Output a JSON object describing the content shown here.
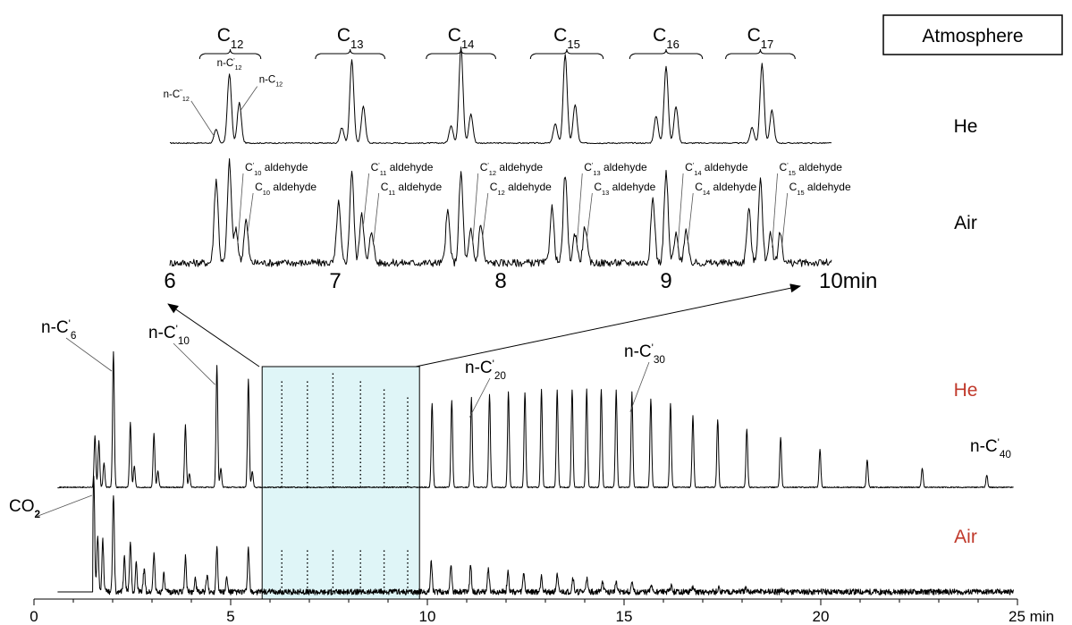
{
  "chart_data": [
    {
      "type": "line",
      "name": "expanded-view",
      "xlim": [
        6,
        10
      ],
      "ticks": [
        {
          "value": 6,
          "label": "6"
        },
        {
          "value": 7,
          "label": "7"
        },
        {
          "value": 8,
          "label": "8"
        },
        {
          "value": 9,
          "label": "9"
        },
        {
          "value": 10,
          "label": "10min"
        }
      ],
      "legend_title": "Atmosphere",
      "series": [
        {
          "name": "He",
          "color": "#000000",
          "peaks": [
            {
              "x": 6.28,
              "h": 0.14
            },
            {
              "x": 6.36,
              "h": 0.72
            },
            {
              "x": 6.42,
              "h": 0.42
            },
            {
              "x": 7.04,
              "h": 0.16
            },
            {
              "x": 7.1,
              "h": 0.86
            },
            {
              "x": 7.17,
              "h": 0.38
            },
            {
              "x": 7.7,
              "h": 0.18
            },
            {
              "x": 7.76,
              "h": 1.0
            },
            {
              "x": 7.82,
              "h": 0.3
            },
            {
              "x": 8.33,
              "h": 0.2
            },
            {
              "x": 8.39,
              "h": 0.92
            },
            {
              "x": 8.45,
              "h": 0.4
            },
            {
              "x": 8.94,
              "h": 0.28
            },
            {
              "x": 9.0,
              "h": 0.8
            },
            {
              "x": 9.06,
              "h": 0.38
            },
            {
              "x": 9.52,
              "h": 0.16
            },
            {
              "x": 9.58,
              "h": 0.82
            },
            {
              "x": 9.64,
              "h": 0.34
            }
          ]
        },
        {
          "name": "Air",
          "color": "#000000",
          "peaks": [
            {
              "x": 6.28,
              "h": 0.78
            },
            {
              "x": 6.36,
              "h": 0.94
            },
            {
              "x": 6.4,
              "h": 0.3
            },
            {
              "x": 6.46,
              "h": 0.4
            },
            {
              "x": 7.02,
              "h": 0.56
            },
            {
              "x": 7.1,
              "h": 0.86
            },
            {
              "x": 7.16,
              "h": 0.48
            },
            {
              "x": 7.22,
              "h": 0.3
            },
            {
              "x": 7.68,
              "h": 0.48
            },
            {
              "x": 7.76,
              "h": 0.84
            },
            {
              "x": 7.82,
              "h": 0.3
            },
            {
              "x": 7.88,
              "h": 0.36
            },
            {
              "x": 8.31,
              "h": 0.52
            },
            {
              "x": 8.39,
              "h": 0.82
            },
            {
              "x": 8.45,
              "h": 0.28
            },
            {
              "x": 8.51,
              "h": 0.34
            },
            {
              "x": 8.92,
              "h": 0.6
            },
            {
              "x": 9.0,
              "h": 0.84
            },
            {
              "x": 9.06,
              "h": 0.26
            },
            {
              "x": 9.12,
              "h": 0.3
            },
            {
              "x": 9.5,
              "h": 0.5
            },
            {
              "x": 9.57,
              "h": 0.78
            },
            {
              "x": 9.63,
              "h": 0.26
            },
            {
              "x": 9.69,
              "h": 0.28
            }
          ]
        }
      ],
      "groups": [
        {
          "label": "C",
          "sub": "12",
          "x1": 6.18,
          "x2": 6.55
        },
        {
          "label": "C",
          "sub": "13",
          "x1": 6.88,
          "x2": 7.3
        },
        {
          "label": "C",
          "sub": "14",
          "x1": 7.55,
          "x2": 7.97
        },
        {
          "label": "C",
          "sub": "15",
          "x1": 8.18,
          "x2": 8.62
        },
        {
          "label": "C",
          "sub": "16",
          "x1": 8.78,
          "x2": 9.22
        },
        {
          "label": "C",
          "sub": "17",
          "x1": 9.36,
          "x2": 9.78
        }
      ],
      "annotations": [
        {
          "main": "n-C",
          "sup": "''",
          "sub": "12",
          "x": 6.28,
          "series": "He"
        },
        {
          "main": "n-C",
          "sup": "'",
          "sub": "12",
          "x": 6.36,
          "series": "He"
        },
        {
          "main": "n-C",
          "sup": "",
          "sub": "12",
          "x": 6.42,
          "series": "He"
        },
        {
          "main": "C",
          "sup": "'",
          "sub": "10",
          "tail": " aldehyde",
          "x": 6.4,
          "series": "Air"
        },
        {
          "main": "C",
          "sup": "",
          "sub": "10",
          "tail": " aldehyde",
          "x": 6.46,
          "series": "Air"
        },
        {
          "main": "C",
          "sup": "'",
          "sub": "11",
          "tail": " aldehyde",
          "x": 7.16,
          "series": "Air"
        },
        {
          "main": "C",
          "sup": "",
          "sub": "11",
          "tail": " aldehyde",
          "x": 7.22,
          "series": "Air"
        },
        {
          "main": "C",
          "sup": "'",
          "sub": "12",
          "tail": " aldehyde",
          "x": 7.82,
          "series": "Air"
        },
        {
          "main": "C",
          "sup": "",
          "sub": "12",
          "tail": " aldehyde",
          "x": 7.88,
          "series": "Air"
        },
        {
          "main": "C",
          "sup": "'",
          "sub": "13",
          "tail": " aldehyde",
          "x": 8.45,
          "series": "Air"
        },
        {
          "main": "C",
          "sup": "",
          "sub": "13",
          "tail": " aldehyde",
          "x": 8.51,
          "series": "Air"
        },
        {
          "main": "C",
          "sup": "'",
          "sub": "14",
          "tail": " aldehyde",
          "x": 9.06,
          "series": "Air"
        },
        {
          "main": "C",
          "sup": "",
          "sub": "14",
          "tail": " aldehyde",
          "x": 9.12,
          "series": "Air"
        },
        {
          "main": "C",
          "sup": "'",
          "sub": "15",
          "tail": " aldehyde",
          "x": 9.63,
          "series": "Air"
        },
        {
          "main": "C",
          "sup": "",
          "sub": "15",
          "tail": " aldehyde",
          "x": 9.69,
          "series": "Air"
        }
      ]
    },
    {
      "type": "line",
      "name": "full-chromatogram",
      "xlim": [
        0,
        25
      ],
      "ticks": [
        {
          "value": 0,
          "label": "0"
        },
        {
          "value": 5,
          "label": "5"
        },
        {
          "value": 10,
          "label": "10"
        },
        {
          "value": 15,
          "label": "15"
        },
        {
          "value": 20,
          "label": "20"
        },
        {
          "value": 25,
          "label": "25 min"
        }
      ],
      "highlight_region": {
        "x1": 5.8,
        "x2": 9.8,
        "color": "#dff5f7"
      },
      "series": [
        {
          "name": "He",
          "color": "#c0392b",
          "peaks": [
            {
              "x": 1.55,
              "h": 0.38
            },
            {
              "x": 1.65,
              "h": 0.34
            },
            {
              "x": 1.78,
              "h": 0.18
            },
            {
              "x": 2.02,
              "h": 1.0
            },
            {
              "x": 2.45,
              "h": 0.48
            },
            {
              "x": 2.55,
              "h": 0.16
            },
            {
              "x": 3.05,
              "h": 0.4
            },
            {
              "x": 3.15,
              "h": 0.12
            },
            {
              "x": 3.85,
              "h": 0.46
            },
            {
              "x": 3.95,
              "h": 0.1
            },
            {
              "x": 4.65,
              "h": 0.9
            },
            {
              "x": 4.75,
              "h": 0.14
            },
            {
              "x": 5.45,
              "h": 0.8
            },
            {
              "x": 5.55,
              "h": 0.12
            },
            {
              "x": 10.12,
              "h": 0.62
            },
            {
              "x": 10.62,
              "h": 0.64
            },
            {
              "x": 11.12,
              "h": 0.66
            },
            {
              "x": 11.58,
              "h": 0.68
            },
            {
              "x": 12.06,
              "h": 0.7
            },
            {
              "x": 12.48,
              "h": 0.7
            },
            {
              "x": 12.9,
              "h": 0.72
            },
            {
              "x": 13.3,
              "h": 0.72
            },
            {
              "x": 13.68,
              "h": 0.72
            },
            {
              "x": 14.05,
              "h": 0.72
            },
            {
              "x": 14.42,
              "h": 0.72
            },
            {
              "x": 14.8,
              "h": 0.72
            },
            {
              "x": 15.2,
              "h": 0.7
            },
            {
              "x": 15.68,
              "h": 0.65
            },
            {
              "x": 16.18,
              "h": 0.62
            },
            {
              "x": 16.75,
              "h": 0.53
            },
            {
              "x": 17.38,
              "h": 0.5
            },
            {
              "x": 18.12,
              "h": 0.43
            },
            {
              "x": 18.98,
              "h": 0.37
            },
            {
              "x": 19.98,
              "h": 0.28
            },
            {
              "x": 21.18,
              "h": 0.2
            },
            {
              "x": 22.58,
              "h": 0.14
            },
            {
              "x": 24.22,
              "h": 0.09
            }
          ]
        },
        {
          "name": "Air",
          "color": "#c0392b",
          "peaks": [
            {
              "x": 1.52,
              "h": 1.0
            },
            {
              "x": 1.62,
              "h": 0.5
            },
            {
              "x": 1.75,
              "h": 0.45
            },
            {
              "x": 2.02,
              "h": 0.85
            },
            {
              "x": 2.3,
              "h": 0.3
            },
            {
              "x": 2.45,
              "h": 0.45
            },
            {
              "x": 2.6,
              "h": 0.25
            },
            {
              "x": 2.8,
              "h": 0.2
            },
            {
              "x": 3.05,
              "h": 0.34
            },
            {
              "x": 3.3,
              "h": 0.15
            },
            {
              "x": 3.85,
              "h": 0.3
            },
            {
              "x": 4.1,
              "h": 0.12
            },
            {
              "x": 4.4,
              "h": 0.14
            },
            {
              "x": 4.65,
              "h": 0.4
            },
            {
              "x": 4.9,
              "h": 0.12
            },
            {
              "x": 5.45,
              "h": 0.38
            },
            {
              "x": 10.1,
              "h": 0.27
            },
            {
              "x": 10.6,
              "h": 0.25
            },
            {
              "x": 11.1,
              "h": 0.23
            },
            {
              "x": 11.55,
              "h": 0.21
            },
            {
              "x": 12.05,
              "h": 0.19
            },
            {
              "x": 12.45,
              "h": 0.17
            },
            {
              "x": 12.9,
              "h": 0.15
            },
            {
              "x": 13.3,
              "h": 0.14
            },
            {
              "x": 13.7,
              "h": 0.13
            },
            {
              "x": 14.05,
              "h": 0.12
            },
            {
              "x": 14.45,
              "h": 0.1
            },
            {
              "x": 14.8,
              "h": 0.09
            },
            {
              "x": 15.2,
              "h": 0.07
            },
            {
              "x": 15.7,
              "h": 0.06
            },
            {
              "x": 16.2,
              "h": 0.05
            },
            {
              "x": 16.75,
              "h": 0.04
            },
            {
              "x": 17.4,
              "h": 0.035
            },
            {
              "x": 18.1,
              "h": 0.03
            },
            {
              "x": 19.0,
              "h": 0.02
            },
            {
              "x": 20.0,
              "h": 0.015
            }
          ]
        }
      ],
      "annotations": [
        {
          "main": "n-C",
          "sup": "'",
          "sub": "6",
          "x": 2.02,
          "series": "He"
        },
        {
          "main": "n-C",
          "sup": "'",
          "sub": "10",
          "x": 4.65,
          "series": "He"
        },
        {
          "main": "n-C",
          "sup": "'",
          "sub": "20",
          "x": 11.12,
          "series": "He"
        },
        {
          "main": "n-C",
          "sup": "'",
          "sub": "30",
          "x": 15.2,
          "series": "He"
        },
        {
          "main": "n-C",
          "sup": "'",
          "sub": "40",
          "x": 24.22,
          "series": "He"
        },
        {
          "main": "CO",
          "sup": "",
          "sub": "2",
          "x": 1.52,
          "series": "Air",
          "bold_sub": true
        }
      ]
    }
  ]
}
